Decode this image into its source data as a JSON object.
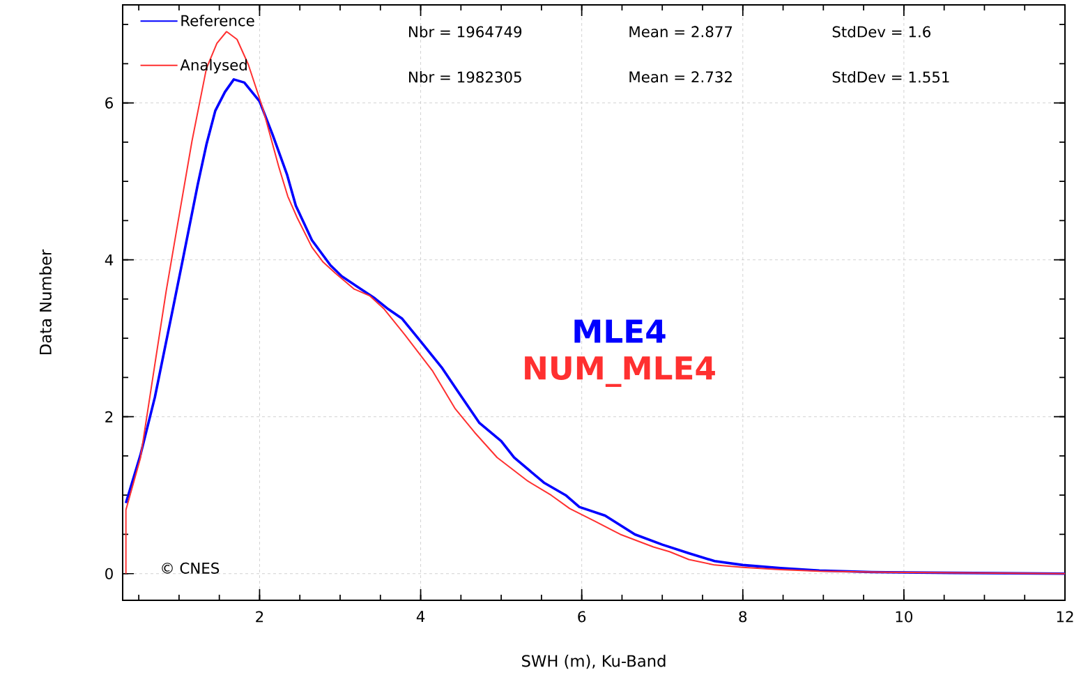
{
  "chart_data": {
    "type": "line",
    "xlabel": "SWH (m), Ku-Band",
    "ylabel": "Data Number",
    "xlim": [
      0.3,
      12
    ],
    "ylim": [
      -0.34,
      7.25
    ],
    "xticks": [
      2,
      4,
      6,
      8,
      10,
      12
    ],
    "yticks": [
      0,
      2,
      4,
      6
    ],
    "grid": true,
    "legend": "top left",
    "marker": "none",
    "line_style": "solid",
    "series": [
      {
        "name": "Reference",
        "color": "#0000ff",
        "x": [
          0.34,
          0.52,
          0.7,
          0.93,
          1.04,
          1.23,
          1.34,
          1.45,
          1.57,
          1.68,
          1.81,
          2.0,
          2.16,
          2.34,
          2.45,
          2.65,
          2.88,
          3.02,
          3.43,
          3.6,
          3.77,
          4.0,
          4.26,
          4.47,
          4.73,
          5.0,
          5.16,
          5.53,
          5.8,
          5.97,
          6.29,
          6.66,
          7.0,
          7.33,
          7.65,
          8.0,
          8.47,
          8.95,
          9.6,
          10.6,
          12.0
        ],
        "values": [
          0.9,
          1.51,
          2.25,
          3.41,
          3.97,
          4.95,
          5.47,
          5.9,
          6.14,
          6.3,
          6.26,
          6.02,
          5.6,
          5.09,
          4.69,
          4.25,
          3.93,
          3.79,
          3.51,
          3.37,
          3.25,
          2.96,
          2.63,
          2.31,
          1.92,
          1.69,
          1.48,
          1.16,
          1.0,
          0.85,
          0.74,
          0.5,
          0.37,
          0.26,
          0.16,
          0.11,
          0.07,
          0.04,
          0.02,
          0.01,
          0.0
        ]
      },
      {
        "name": "Analysed",
        "color": "#ff3030",
        "x": [
          0.34,
          0.34,
          0.52,
          0.7,
          0.84,
          0.98,
          1.16,
          1.34,
          1.47,
          1.59,
          1.72,
          1.86,
          2.04,
          2.24,
          2.35,
          2.47,
          2.65,
          2.79,
          2.94,
          3.17,
          3.37,
          3.54,
          3.8,
          4.15,
          4.43,
          4.67,
          4.95,
          5.33,
          5.62,
          5.85,
          6.16,
          6.48,
          6.89,
          7.09,
          7.33,
          7.65,
          8.0,
          8.47,
          8.95,
          9.6,
          10.6,
          12.0
        ],
        "values": [
          0,
          0.81,
          1.47,
          2.67,
          3.6,
          4.44,
          5.51,
          6.44,
          6.76,
          6.91,
          6.81,
          6.49,
          5.93,
          5.18,
          4.81,
          4.53,
          4.16,
          3.97,
          3.83,
          3.63,
          3.54,
          3.38,
          3.05,
          2.58,
          2.1,
          1.8,
          1.48,
          1.18,
          1.0,
          0.83,
          0.67,
          0.5,
          0.34,
          0.28,
          0.18,
          0.11,
          0.08,
          0.05,
          0.03,
          0.02,
          0.01,
          0.0
        ]
      }
    ],
    "annotations": [
      "Nbr = 1964749",
      "Mean = 2.877",
      "StdDev = 1.6",
      "Nbr = 1982305",
      "Mean = 2.732",
      "StdDev = 1.551",
      "MLE4",
      "NUM_MLE4",
      "© CNES"
    ]
  }
}
